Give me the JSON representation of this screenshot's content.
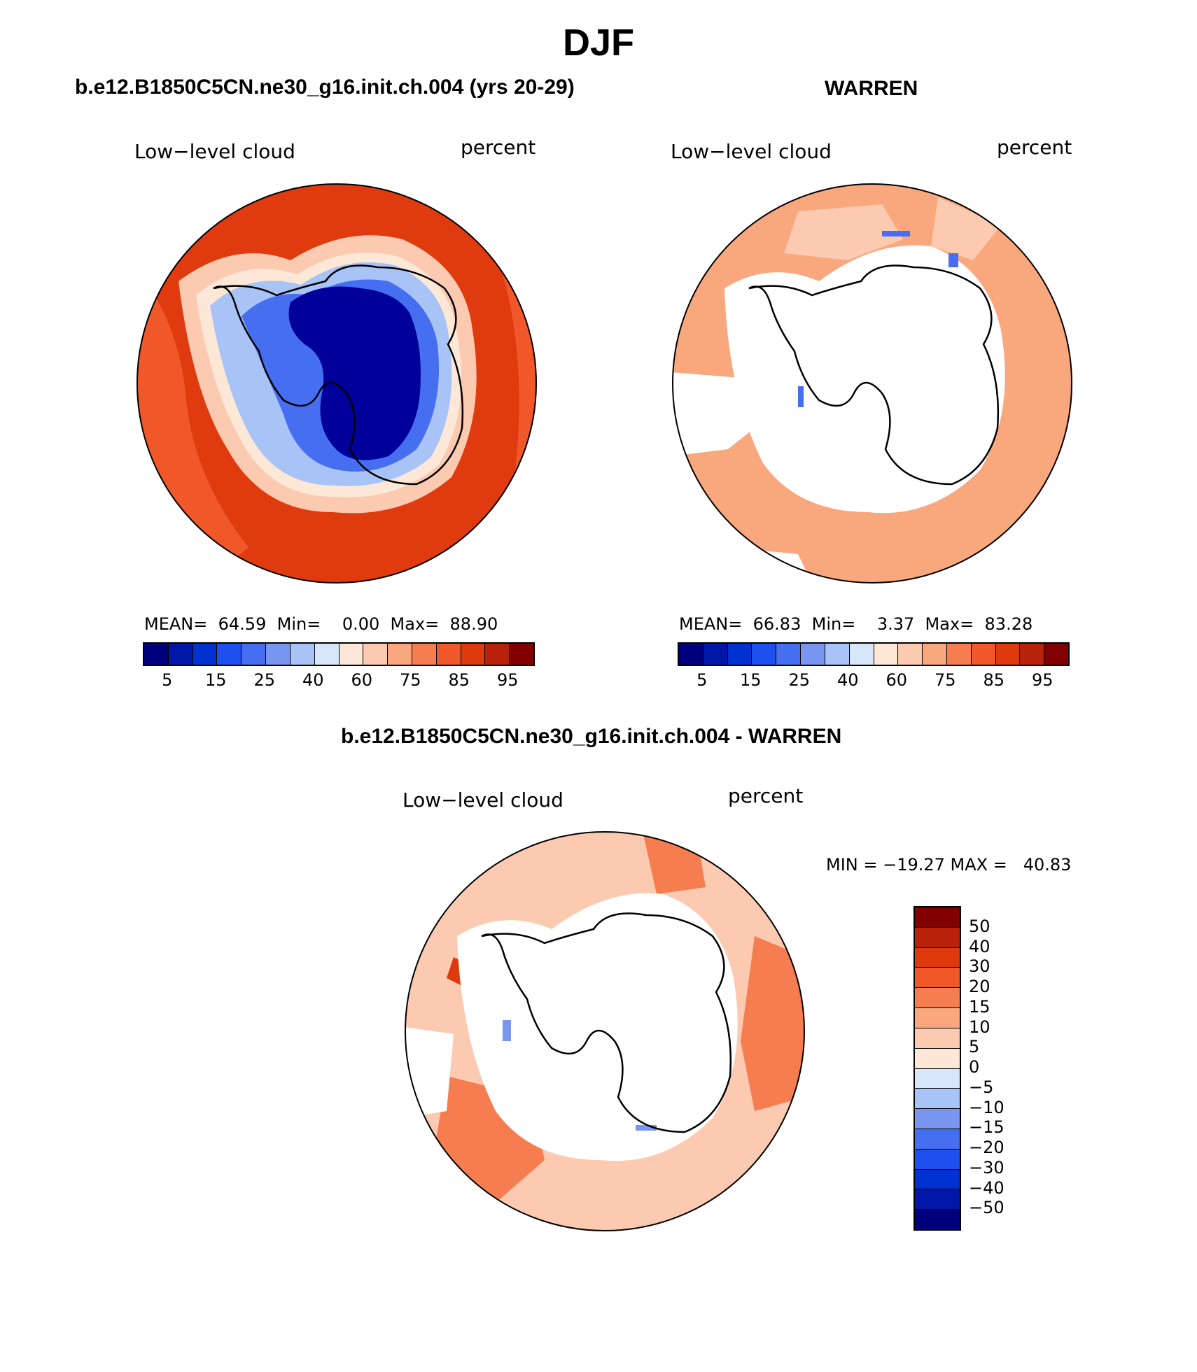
{
  "title": "DJF",
  "panels": [
    {
      "id": "model",
      "heading": "b.e12.B1850C5CN.ne30_g16.init.ch.004 (yrs 20-29)",
      "left_label": "Low−level cloud",
      "right_label": "percent",
      "stats": {
        "mean_label": "MEAN=",
        "mean": "64.59",
        "min_label": "Min=",
        "min": "0.00",
        "max_label": "Max=",
        "max": "88.90"
      }
    },
    {
      "id": "obs",
      "heading": "WARREN",
      "left_label": "Low−level cloud",
      "right_label": "percent",
      "stats": {
        "mean_label": "MEAN=",
        "mean": "66.83",
        "min_label": "Min=",
        "min": "3.37",
        "max_label": "Max=",
        "max": "83.28"
      }
    },
    {
      "id": "diff",
      "heading": "b.e12.B1850C5CN.ne30_g16.init.ch.004 - WARREN",
      "left_label": "Low−level cloud",
      "right_label": "percent",
      "minmax": "MIN = −19.27 MAX =   40.83"
    }
  ],
  "colorbar_abs": {
    "colors": [
      "#00007f",
      "#0017a8",
      "#0032d2",
      "#1e50f0",
      "#466ef0",
      "#7896f0",
      "#a8c3f5",
      "#d8e6fa",
      "#fde8d8",
      "#fccab0",
      "#f9a77d",
      "#f57d4f",
      "#f0582a",
      "#de3a0e",
      "#b8220a",
      "#820000"
    ],
    "ticks": [
      "5",
      "15",
      "25",
      "40",
      "60",
      "75",
      "85",
      "95"
    ]
  },
  "colorbar_diff": {
    "colors": [
      "#820000",
      "#b8220a",
      "#de3a0e",
      "#f0582a",
      "#f57d4f",
      "#f9a77d",
      "#fccab0",
      "#fde8d8",
      "#d8e6fa",
      "#a8c3f5",
      "#7896f0",
      "#466ef0",
      "#1e50f0",
      "#0032d2",
      "#0017a8",
      "#00007f"
    ],
    "ticks": [
      "50",
      "40",
      "30",
      "20",
      "15",
      "10",
      "5",
      "0",
      "−5",
      "−10",
      "−15",
      "−20",
      "−30",
      "−40",
      "−50"
    ]
  },
  "map_colors": {
    "ocean_high": "#e03a0f",
    "ocean_mid": "#f0582a",
    "coast_light": "#fccab0",
    "coast_pale": "#fde8d8",
    "ice_light": "#a8c3f5",
    "ice_mid": "#466ef0",
    "ice_core": "#00009a",
    "obs_fill": "#f9a77d",
    "obs_light": "#fccab0",
    "diff_fill": "#fccab0",
    "diff_strong": "#f57d4f",
    "diff_max": "#de3a0e",
    "neg": "#7896f0"
  }
}
